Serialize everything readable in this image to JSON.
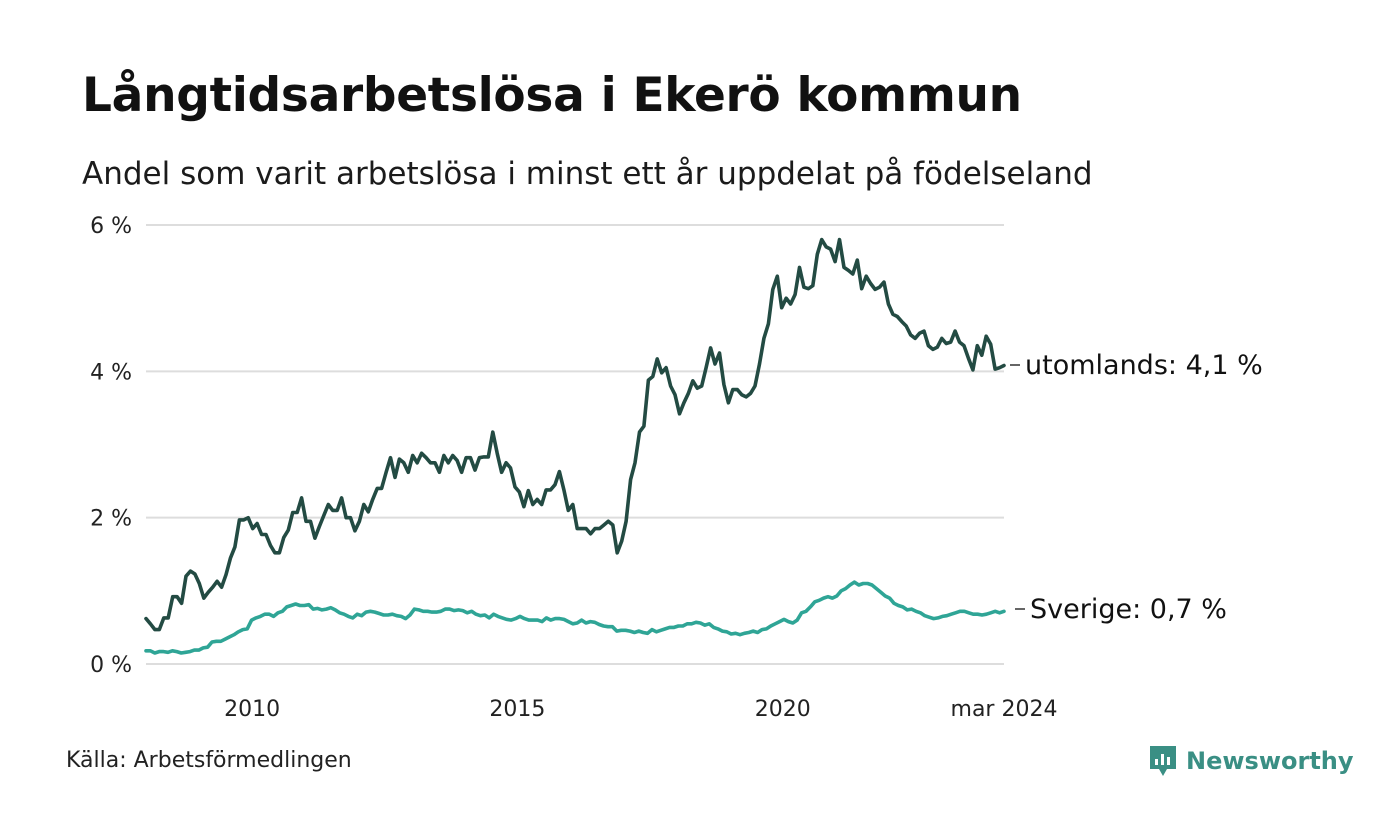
{
  "title": "Långtidsarbetslösa i Ekerö kommun",
  "subtitle": "Andel som varit arbetslösa i minst ett år uppdelat på födelseland",
  "source": "Källa: Arbetsförmedlingen",
  "brand": "Newsworthy",
  "colors": {
    "utomlands": "#234b43",
    "sverige": "#2fa596",
    "grid": "#dddddd",
    "brand": "#3a8f84"
  },
  "chart_data": {
    "type": "line",
    "x_start": 2008.0,
    "x_step_months": 1,
    "x_range": [
      2008.0,
      2024.17
    ],
    "ylim": [
      0,
      6
    ],
    "yticks": [
      {
        "value": 0,
        "label": "0 %"
      },
      {
        "value": 2,
        "label": "2 %"
      },
      {
        "value": 4,
        "label": "4 %"
      },
      {
        "value": 6,
        "label": "6 %"
      }
    ],
    "xticks": [
      {
        "value": 2010,
        "label": "2010"
      },
      {
        "value": 2015,
        "label": "2015"
      },
      {
        "value": 2020,
        "label": "2020"
      },
      {
        "value": 2024.17,
        "label": "mar 2024"
      }
    ],
    "series": [
      {
        "name": "utomlands",
        "end_label": "utomlands: 4,1 %",
        "values": [
          0.62,
          0.55,
          0.47,
          0.47,
          0.63,
          0.63,
          0.92,
          0.92,
          0.83,
          1.2,
          1.27,
          1.23,
          1.1,
          0.9,
          0.98,
          1.05,
          1.13,
          1.05,
          1.22,
          1.45,
          1.6,
          1.97,
          1.97,
          2.0,
          1.85,
          1.92,
          1.77,
          1.77,
          1.62,
          1.52,
          1.52,
          1.73,
          1.83,
          2.07,
          2.07,
          2.27,
          1.95,
          1.95,
          1.72,
          1.88,
          2.03,
          2.18,
          2.1,
          2.1,
          2.27,
          2.0,
          2.0,
          1.82,
          1.95,
          2.18,
          2.08,
          2.25,
          2.4,
          2.4,
          2.62,
          2.82,
          2.55,
          2.8,
          2.75,
          2.62,
          2.85,
          2.75,
          2.88,
          2.82,
          2.75,
          2.75,
          2.62,
          2.85,
          2.75,
          2.85,
          2.78,
          2.62,
          2.82,
          2.82,
          2.65,
          2.82,
          2.83,
          2.83,
          3.17,
          2.88,
          2.62,
          2.75,
          2.68,
          2.42,
          2.35,
          2.15,
          2.37,
          2.18,
          2.25,
          2.18,
          2.38,
          2.38,
          2.45,
          2.63,
          2.38,
          2.1,
          2.18,
          1.85,
          1.85,
          1.85,
          1.78,
          1.85,
          1.85,
          1.9,
          1.95,
          1.9,
          1.52,
          1.68,
          1.95,
          2.52,
          2.75,
          3.17,
          3.25,
          3.88,
          3.93,
          4.17,
          3.98,
          4.05,
          3.8,
          3.68,
          3.42,
          3.57,
          3.7,
          3.87,
          3.77,
          3.8,
          4.05,
          4.32,
          4.1,
          4.25,
          3.82,
          3.57,
          3.75,
          3.75,
          3.68,
          3.65,
          3.7,
          3.8,
          4.1,
          4.45,
          4.65,
          5.12,
          5.3,
          4.87,
          5.0,
          4.92,
          5.05,
          5.42,
          5.15,
          5.13,
          5.17,
          5.6,
          5.8,
          5.7,
          5.67,
          5.5,
          5.8,
          5.42,
          5.38,
          5.33,
          5.52,
          5.13,
          5.3,
          5.2,
          5.12,
          5.15,
          5.22,
          4.92,
          4.78,
          4.75,
          4.68,
          4.62,
          4.5,
          4.45,
          4.52,
          4.55,
          4.35,
          4.3,
          4.33,
          4.45,
          4.38,
          4.4,
          4.55,
          4.4,
          4.35,
          4.18,
          4.02,
          4.35,
          4.22,
          4.48,
          4.37,
          4.03,
          4.05,
          4.08
        ]
      },
      {
        "name": "Sverige",
        "end_label": "Sverige: 0,7 %",
        "values": [
          0.18,
          0.18,
          0.15,
          0.17,
          0.17,
          0.16,
          0.18,
          0.17,
          0.15,
          0.16,
          0.17,
          0.19,
          0.19,
          0.22,
          0.23,
          0.3,
          0.31,
          0.31,
          0.34,
          0.37,
          0.4,
          0.44,
          0.47,
          0.48,
          0.6,
          0.63,
          0.65,
          0.68,
          0.68,
          0.65,
          0.7,
          0.72,
          0.78,
          0.8,
          0.82,
          0.8,
          0.8,
          0.81,
          0.75,
          0.76,
          0.74,
          0.75,
          0.77,
          0.74,
          0.7,
          0.68,
          0.65,
          0.63,
          0.68,
          0.66,
          0.71,
          0.72,
          0.71,
          0.69,
          0.67,
          0.67,
          0.68,
          0.66,
          0.65,
          0.62,
          0.67,
          0.75,
          0.74,
          0.72,
          0.72,
          0.71,
          0.71,
          0.72,
          0.75,
          0.75,
          0.73,
          0.74,
          0.73,
          0.7,
          0.72,
          0.68,
          0.66,
          0.67,
          0.63,
          0.68,
          0.65,
          0.63,
          0.61,
          0.6,
          0.62,
          0.65,
          0.62,
          0.6,
          0.6,
          0.6,
          0.58,
          0.63,
          0.6,
          0.62,
          0.62,
          0.61,
          0.58,
          0.55,
          0.56,
          0.6,
          0.56,
          0.58,
          0.57,
          0.54,
          0.52,
          0.51,
          0.51,
          0.45,
          0.46,
          0.46,
          0.45,
          0.43,
          0.45,
          0.43,
          0.42,
          0.47,
          0.44,
          0.46,
          0.48,
          0.5,
          0.5,
          0.52,
          0.52,
          0.55,
          0.55,
          0.57,
          0.56,
          0.53,
          0.55,
          0.5,
          0.48,
          0.45,
          0.44,
          0.41,
          0.42,
          0.4,
          0.42,
          0.43,
          0.45,
          0.43,
          0.47,
          0.48,
          0.52,
          0.55,
          0.58,
          0.61,
          0.58,
          0.56,
          0.6,
          0.7,
          0.72,
          0.78,
          0.85,
          0.87,
          0.9,
          0.92,
          0.9,
          0.93,
          1.0,
          1.03,
          1.08,
          1.12,
          1.08,
          1.1,
          1.1,
          1.08,
          1.03,
          0.98,
          0.93,
          0.9,
          0.83,
          0.8,
          0.78,
          0.74,
          0.75,
          0.72,
          0.7,
          0.66,
          0.64,
          0.62,
          0.63,
          0.65,
          0.66,
          0.68,
          0.7,
          0.72,
          0.72,
          0.7,
          0.68,
          0.68,
          0.67,
          0.68,
          0.7,
          0.72,
          0.7,
          0.72
        ]
      }
    ]
  }
}
